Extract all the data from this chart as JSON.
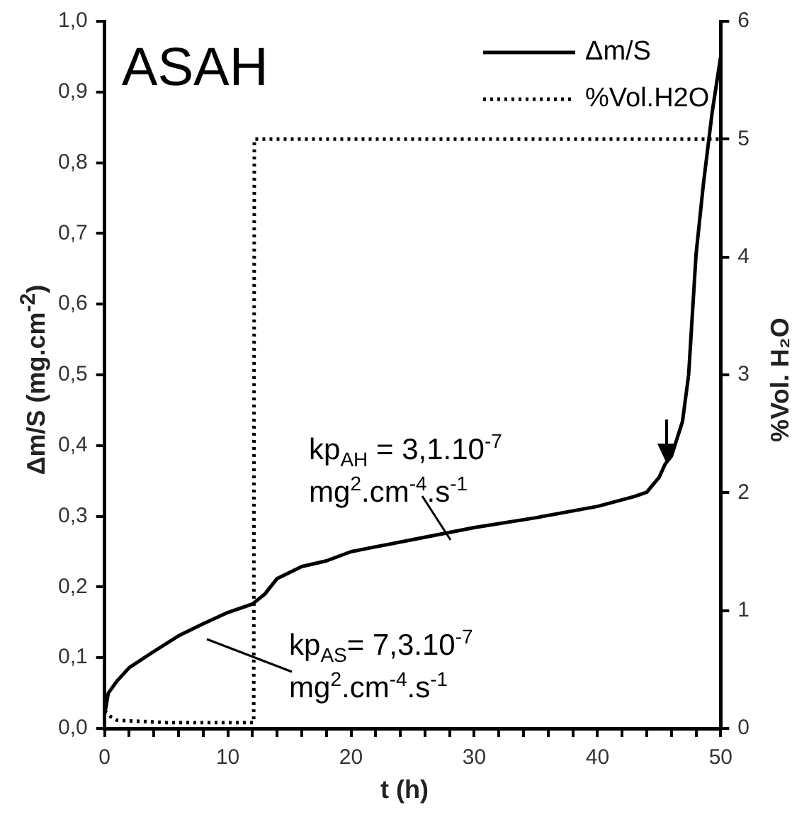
{
  "chart_data": {
    "type": "line",
    "title": "ASAH",
    "xlabel": "t (h)",
    "ylabel": "Δm/S (mg.cm$^{-2}$)",
    "y2label": "%Vol. H₂O",
    "xlim": [
      0,
      50
    ],
    "xticks": [
      0,
      {
        "value": 2,
        "label": null
      },
      {
        "value": 4,
        "label": null
      },
      {
        "value": 6,
        "label": null
      },
      {
        "value": 8,
        "label": null
      },
      10,
      {
        "value": 12,
        "label": null
      },
      {
        "value": 14,
        "label": null
      },
      {
        "value": 16,
        "label": null
      },
      {
        "value": 18,
        "label": null
      },
      20,
      {
        "value": 22,
        "label": null
      },
      {
        "value": 24,
        "label": null
      },
      {
        "value": 26,
        "label": null
      },
      {
        "value": 28,
        "label": null
      },
      30,
      {
        "value": 32,
        "label": null
      },
      {
        "value": 34,
        "label": null
      },
      {
        "value": 36,
        "label": null
      },
      {
        "value": 38,
        "label": null
      },
      40,
      {
        "value": 42,
        "label": null
      },
      {
        "value": 44,
        "label": null
      },
      {
        "value": 46,
        "label": null
      },
      {
        "value": 48,
        "label": null
      },
      50
    ],
    "ylim": [
      0,
      1
    ],
    "yticks": [
      {
        "value": 0,
        "label": "0,0"
      },
      {
        "value": 0.1,
        "label": "0,1"
      },
      {
        "value": 0.2,
        "label": "0,2"
      },
      {
        "value": 0.3,
        "label": "0,3"
      },
      {
        "value": 0.4,
        "label": "0,4"
      },
      {
        "value": 0.5,
        "label": "0,5"
      },
      {
        "value": 0.6,
        "label": "0,6"
      },
      {
        "value": 0.7,
        "label": "0,7"
      },
      {
        "value": 0.8,
        "label": "0,8"
      },
      {
        "value": 0.9,
        "label": "0,9"
      },
      {
        "value": 1,
        "label": "1,0"
      }
    ],
    "y2lim": [
      0,
      6
    ],
    "y2ticks": [
      0,
      1,
      2,
      3,
      4,
      5,
      6
    ],
    "grid": false,
    "legend": "top right",
    "marker": "none",
    "series": [
      {
        "name": "Δm/S",
        "color": "#000000",
        "line_style": "solid",
        "x": [
          0,
          0.3,
          1,
          2,
          4,
          6,
          8,
          10,
          12,
          13,
          14,
          16,
          18,
          20,
          25,
          30,
          35,
          40,
          43,
          44,
          45,
          45.5,
          46,
          46.9,
          47.4,
          48,
          48.6,
          49.3,
          50
        ],
        "values": [
          0.02,
          0.05,
          0.067,
          0.086,
          0.109,
          0.131,
          0.148,
          0.164,
          0.176,
          0.19,
          0.212,
          0.229,
          0.237,
          0.25,
          0.267,
          0.284,
          0.298,
          0.314,
          0.328,
          0.334,
          0.355,
          0.374,
          0.385,
          0.434,
          0.5,
          0.67,
          0.77,
          0.87,
          0.95
        ]
      },
      {
        "name": "%Vol.H2O",
        "color": "#000000",
        "line_style": "dotted",
        "axis": "y2",
        "x": [
          0,
          0.5,
          1,
          5,
          10,
          12.1,
          12.15,
          20,
          30,
          40,
          50
        ],
        "values": [
          0.15,
          0.1,
          0.07,
          0.05,
          0.05,
          0.05,
          5,
          5,
          5,
          5,
          5
        ]
      }
    ],
    "annotations": [
      "kp$_{AH}$ = 3,1.10$^{-7}$ mg$^{2}$.cm$^{-4}$.s$^{-1}$",
      "kp$_{AS}$= 7,3.10$^{-7}$ mg$^{2}$.cm$^{-4}$.s$^{-1}$"
    ]
  }
}
